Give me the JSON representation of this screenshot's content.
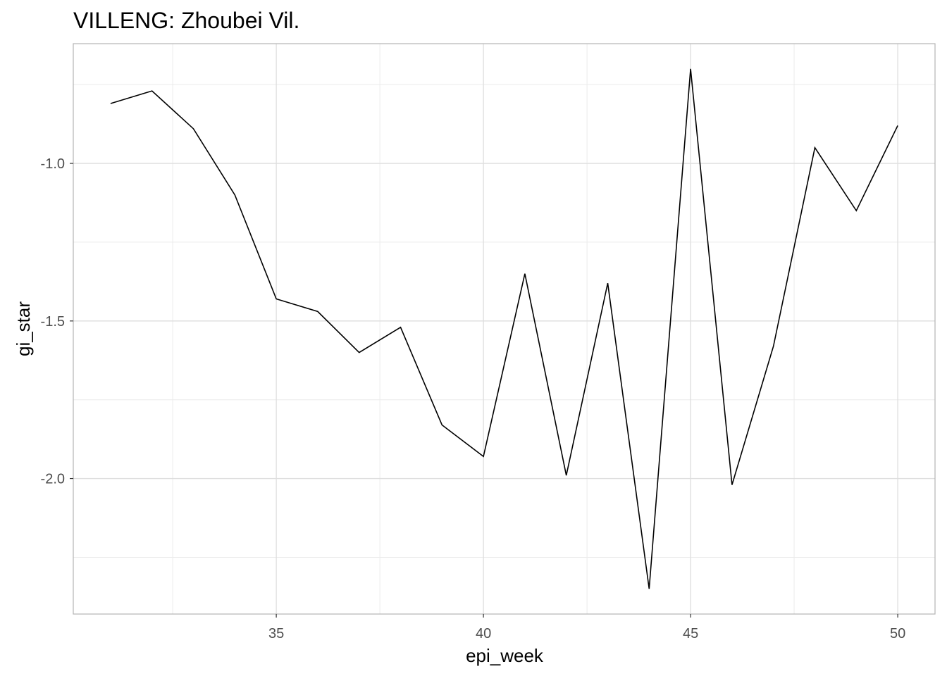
{
  "chart_data": {
    "type": "line",
    "title": "VILLENG: Zhoubei Vil.",
    "xlabel": "epi_week",
    "ylabel": "gi_star",
    "xlim": [
      30.1,
      50.9
    ],
    "ylim": [
      -2.43,
      -0.62
    ],
    "x_ticks": [
      35,
      40,
      45,
      50
    ],
    "x_tick_labels": [
      "35",
      "40",
      "45",
      "50"
    ],
    "x_minor_ticks": [
      32.5,
      37.5,
      42.5,
      47.5
    ],
    "y_ticks": [
      -2.0,
      -1.5,
      -1.0
    ],
    "y_tick_labels": [
      "-2.0",
      "-1.5",
      "-1.0"
    ],
    "y_minor_ticks": [
      -2.25,
      -1.75,
      -1.25,
      -0.75
    ],
    "grid": true,
    "line_color": "#000000",
    "series": [
      {
        "x": [
          31,
          32,
          33,
          34,
          35,
          36,
          37,
          38,
          39,
          40,
          41,
          42,
          43,
          44,
          45,
          46,
          47,
          48,
          49,
          50
        ],
        "values": [
          -0.81,
          -0.77,
          -0.89,
          -1.1,
          -1.43,
          -1.47,
          -1.6,
          -1.52,
          -1.83,
          -1.93,
          -1.35,
          -1.99,
          -1.38,
          -2.35,
          -0.7,
          -2.02,
          -1.58,
          -0.95,
          -1.15,
          -0.88
        ]
      }
    ]
  }
}
